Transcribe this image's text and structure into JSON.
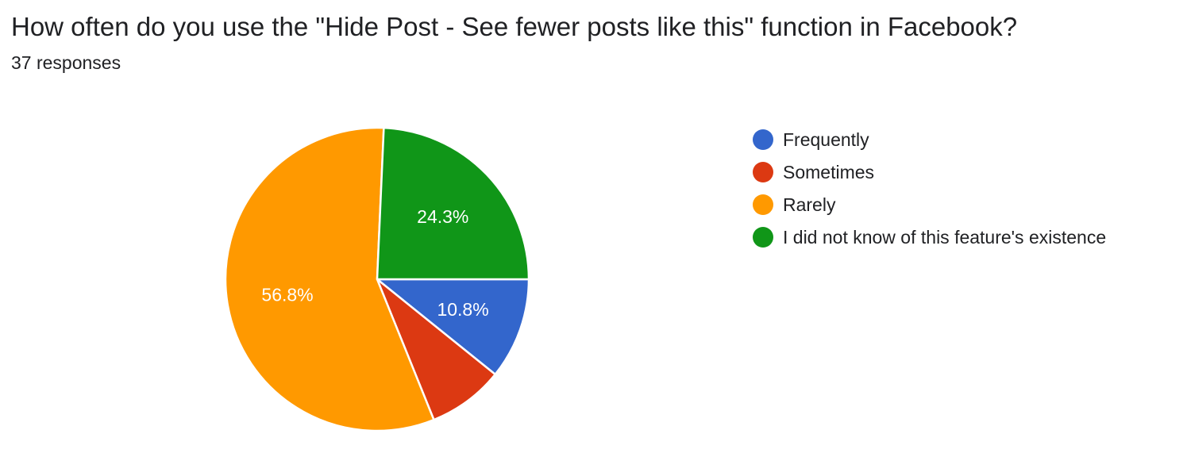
{
  "question": {
    "title": "How often do you use the \"Hide Post - See fewer posts like this\" function in Facebook?",
    "responses": "37 responses"
  },
  "chart_data": {
    "type": "pie",
    "total_responses": 37,
    "categories": [
      "Frequently",
      "Sometimes",
      "Rarely",
      "I did not know of this feature's existence"
    ],
    "values": [
      10.8,
      8.1,
      56.8,
      24.3
    ],
    "value_labels": [
      "10.8%",
      "",
      "56.8%",
      "24.3%"
    ],
    "colors": [
      "#3366cc",
      "#dc3912",
      "#ff9900",
      "#109618"
    ],
    "legend_position": "right"
  }
}
